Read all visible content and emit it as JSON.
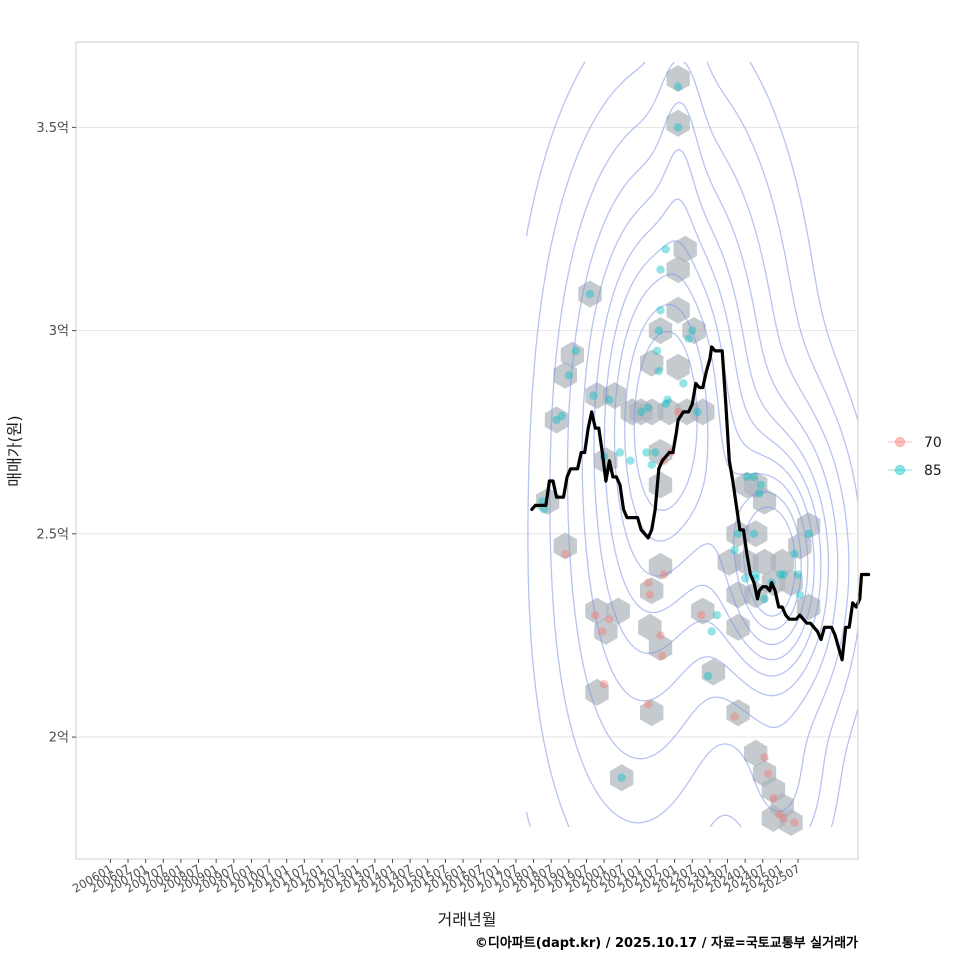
{
  "chart_data": {
    "type": "scatter",
    "title": "",
    "xlabel": "거래년월",
    "ylabel": "매매가(원)",
    "caption": "©디아파트(dapt.kr) / 2025.10.17 / 자료=국토교통부 실거래가",
    "x_ticks": [
      "200601",
      "200607",
      "200701",
      "200707",
      "200801",
      "200807",
      "200901",
      "200907",
      "201001",
      "201007",
      "201101",
      "201107",
      "201201",
      "201207",
      "201301",
      "201307",
      "201401",
      "201407",
      "201501",
      "201507",
      "201601",
      "201607",
      "201701",
      "201707",
      "201801",
      "201807",
      "201901",
      "201907",
      "202001",
      "202007",
      "202101",
      "202107",
      "202201",
      "202207",
      "202301",
      "202307",
      "202401",
      "202407",
      "202501",
      "202507"
    ],
    "y_ticks": [
      {
        "value": 2.0,
        "label": "2억"
      },
      {
        "value": 2.5,
        "label": "2.5억"
      },
      {
        "value": 3.0,
        "label": "3억"
      },
      {
        "value": 3.5,
        "label": "3.5억"
      }
    ],
    "ylim": [
      1.7,
      3.71
    ],
    "xlim": [
      -1.95,
      42.4
    ],
    "grid": true,
    "legend_position": "right",
    "colors": {
      "s70": "#F8766D",
      "s85": "#00BFC4",
      "trend": "#000000",
      "hex": "#aeb5bc",
      "contour": "#7b93e6",
      "grid": "#e4e4e4",
      "panel_border": "#cfcfcf"
    },
    "series": [
      {
        "name": "70",
        "color": "#F8766D",
        "points": [
          [
            25.8,
            2.45
          ],
          [
            27.5,
            2.3
          ],
          [
            27.9,
            2.26
          ],
          [
            28.3,
            2.29
          ],
          [
            28,
            2.13
          ],
          [
            30.5,
            2.38
          ],
          [
            30.6,
            2.35
          ],
          [
            30.5,
            2.08
          ],
          [
            31.2,
            2.25
          ],
          [
            31.3,
            2.2
          ],
          [
            31.4,
            2.4
          ],
          [
            31.4,
            2.68
          ],
          [
            31.8,
            2.7
          ],
          [
            32.2,
            2.8
          ],
          [
            33.5,
            2.3
          ],
          [
            35.4,
            2.05
          ],
          [
            37.1,
            1.95
          ],
          [
            37.3,
            1.91
          ],
          [
            37.6,
            1.85
          ],
          [
            37.9,
            1.81
          ],
          [
            38.2,
            1.8
          ],
          [
            38.8,
            1.79
          ]
        ]
      },
      {
        "name": "85",
        "color": "#00BFC4",
        "points": [
          [
            24.5,
            2.58
          ],
          [
            24.6,
            2.56
          ],
          [
            25.3,
            2.78
          ],
          [
            25.6,
            2.79
          ],
          [
            26,
            2.89
          ],
          [
            26.4,
            2.95
          ],
          [
            27.2,
            3.09
          ],
          [
            27.4,
            2.84
          ],
          [
            28,
            2.69
          ],
          [
            28.3,
            2.83
          ],
          [
            28.9,
            2.7
          ],
          [
            29,
            1.9
          ],
          [
            29.5,
            2.68
          ],
          [
            30.1,
            2.8
          ],
          [
            30.4,
            2.7
          ],
          [
            30.5,
            2.81
          ],
          [
            30.7,
            2.67
          ],
          [
            30.9,
            2.7
          ],
          [
            31,
            2.95
          ],
          [
            31.1,
            2.9
          ],
          [
            31.1,
            3.0
          ],
          [
            31.2,
            3.05
          ],
          [
            31.2,
            3.15
          ],
          [
            31.5,
            3.2
          ],
          [
            31.5,
            2.82
          ],
          [
            31.6,
            2.83
          ],
          [
            32.2,
            3.5
          ],
          [
            32.2,
            3.6
          ],
          [
            32.5,
            2.87
          ],
          [
            32.8,
            2.98
          ],
          [
            33,
            3.0
          ],
          [
            33.3,
            2.8
          ],
          [
            33.9,
            2.15
          ],
          [
            34.1,
            2.26
          ],
          [
            34.4,
            2.3
          ],
          [
            35.4,
            2.46
          ],
          [
            35.6,
            2.5
          ],
          [
            36,
            2.39
          ],
          [
            36.1,
            2.64
          ],
          [
            36.5,
            2.64
          ],
          [
            36.5,
            2.5
          ],
          [
            36.6,
            2.4
          ],
          [
            36.6,
            2.39
          ],
          [
            36.8,
            2.6
          ],
          [
            36.9,
            2.62
          ],
          [
            37.1,
            2.34
          ],
          [
            37.5,
            2.38
          ],
          [
            38,
            2.4
          ],
          [
            38.2,
            2.4
          ],
          [
            38.8,
            2.45
          ],
          [
            39,
            2.4
          ],
          [
            39.1,
            2.35
          ],
          [
            39.6,
            2.5
          ]
        ]
      }
    ],
    "hexbins": [
      [
        32.2,
        3.62
      ],
      [
        32.2,
        3.51
      ],
      [
        32.6,
        3.2
      ],
      [
        32.2,
        3.15
      ],
      [
        27.2,
        3.09
      ],
      [
        32.2,
        3.05
      ],
      [
        31.2,
        3.0
      ],
      [
        33.1,
        3.0
      ],
      [
        26.2,
        2.94
      ],
      [
        25.8,
        2.89
      ],
      [
        30.7,
        2.92
      ],
      [
        32.2,
        2.91
      ],
      [
        27.6,
        2.84
      ],
      [
        28.6,
        2.84
      ],
      [
        29.6,
        2.8
      ],
      [
        30.1,
        2.8
      ],
      [
        30.7,
        2.8
      ],
      [
        31.7,
        2.8
      ],
      [
        32.7,
        2.8
      ],
      [
        33.6,
        2.8
      ],
      [
        25.3,
        2.78
      ],
      [
        31.2,
        2.7
      ],
      [
        28.1,
        2.68
      ],
      [
        31.2,
        2.62
      ],
      [
        24.8,
        2.58
      ],
      [
        25.8,
        2.47
      ],
      [
        36.1,
        2.62
      ],
      [
        36.6,
        2.62
      ],
      [
        37.1,
        2.58
      ],
      [
        35.6,
        2.5
      ],
      [
        36.6,
        2.5
      ],
      [
        39.6,
        2.52
      ],
      [
        35.1,
        2.43
      ],
      [
        36.1,
        2.43
      ],
      [
        37.1,
        2.43
      ],
      [
        38.1,
        2.43
      ],
      [
        39.1,
        2.47
      ],
      [
        37.6,
        2.38
      ],
      [
        38.6,
        2.38
      ],
      [
        35.6,
        2.35
      ],
      [
        36.6,
        2.35
      ],
      [
        39.6,
        2.32
      ],
      [
        27.6,
        2.31
      ],
      [
        28.1,
        2.26
      ],
      [
        28.8,
        2.31
      ],
      [
        30.6,
        2.27
      ],
      [
        31.2,
        2.22
      ],
      [
        31.2,
        2.42
      ],
      [
        30.7,
        2.36
      ],
      [
        33.6,
        2.31
      ],
      [
        35.6,
        2.27
      ],
      [
        34.2,
        2.16
      ],
      [
        27.6,
        2.11
      ],
      [
        30.7,
        2.06
      ],
      [
        35.6,
        2.06
      ],
      [
        36.6,
        1.96
      ],
      [
        37.1,
        1.91
      ],
      [
        37.6,
        1.87
      ],
      [
        38.1,
        1.83
      ],
      [
        37.6,
        1.8
      ],
      [
        38.6,
        1.79
      ],
      [
        29,
        1.9
      ]
    ],
    "trend_line": [
      [
        23.9,
        2.56
      ],
      [
        24.1,
        2.57
      ],
      [
        24.5,
        2.57
      ],
      [
        24.7,
        2.57
      ],
      [
        24.9,
        2.63
      ],
      [
        25.1,
        2.63
      ],
      [
        25.3,
        2.59
      ],
      [
        25.7,
        2.59
      ],
      [
        25.9,
        2.64
      ],
      [
        26.1,
        2.66
      ],
      [
        26.5,
        2.66
      ],
      [
        26.7,
        2.7
      ],
      [
        26.9,
        2.7
      ],
      [
        27.1,
        2.76
      ],
      [
        27.3,
        2.8
      ],
      [
        27.5,
        2.76
      ],
      [
        27.7,
        2.76
      ],
      [
        27.9,
        2.7
      ],
      [
        28.1,
        2.63
      ],
      [
        28.3,
        2.68
      ],
      [
        28.5,
        2.64
      ],
      [
        28.7,
        2.64
      ],
      [
        28.9,
        2.62
      ],
      [
        29.1,
        2.56
      ],
      [
        29.3,
        2.54
      ],
      [
        29.9,
        2.54
      ],
      [
        30.1,
        2.51
      ],
      [
        30.3,
        2.5
      ],
      [
        30.5,
        2.49
      ],
      [
        30.7,
        2.51
      ],
      [
        30.9,
        2.56
      ],
      [
        31.1,
        2.66
      ],
      [
        31.3,
        2.68
      ],
      [
        31.7,
        2.7
      ],
      [
        31.9,
        2.7
      ],
      [
        32.1,
        2.75
      ],
      [
        32.2,
        2.78
      ],
      [
        32.5,
        2.8
      ],
      [
        32.8,
        2.8
      ],
      [
        33,
        2.82
      ],
      [
        33.2,
        2.87
      ],
      [
        33.4,
        2.86
      ],
      [
        33.6,
        2.86
      ],
      [
        33.8,
        2.9
      ],
      [
        34,
        2.93
      ],
      [
        34.1,
        2.96
      ],
      [
        34.3,
        2.95
      ],
      [
        34.5,
        2.95
      ],
      [
        34.7,
        2.95
      ],
      [
        34.9,
        2.82
      ],
      [
        35.1,
        2.68
      ],
      [
        35.3,
        2.63
      ],
      [
        35.5,
        2.57
      ],
      [
        35.7,
        2.51
      ],
      [
        35.9,
        2.51
      ],
      [
        36.1,
        2.45
      ],
      [
        36.3,
        2.4
      ],
      [
        36.5,
        2.38
      ],
      [
        36.7,
        2.34
      ],
      [
        36.8,
        2.36
      ],
      [
        37,
        2.37
      ],
      [
        37.2,
        2.37
      ],
      [
        37.4,
        2.36
      ],
      [
        37.5,
        2.38
      ],
      [
        37.7,
        2.36
      ],
      [
        37.9,
        2.32
      ],
      [
        38.1,
        2.32
      ],
      [
        38.3,
        2.3
      ],
      [
        38.5,
        2.29
      ],
      [
        38.7,
        2.29
      ],
      [
        38.9,
        2.29
      ],
      [
        39.1,
        2.3
      ],
      [
        39.3,
        2.29
      ],
      [
        39.5,
        2.28
      ],
      [
        39.7,
        2.28
      ],
      [
        39.9,
        2.27
      ],
      [
        40.1,
        2.26
      ],
      [
        40.3,
        2.24
      ],
      [
        40.5,
        2.27
      ],
      [
        40.7,
        2.27
      ],
      [
        40.9,
        2.27
      ],
      [
        41.1,
        2.25
      ],
      [
        41.3,
        2.22
      ],
      [
        41.5,
        2.19
      ],
      [
        41.7,
        2.27
      ],
      [
        41.9,
        2.27
      ],
      [
        42.1,
        2.33
      ],
      [
        42.3,
        2.32
      ],
      [
        42.5,
        2.34
      ],
      [
        42.6,
        2.4
      ],
      [
        42.8,
        2.4
      ],
      [
        43,
        2.4
      ]
    ],
    "density_peaks": [
      {
        "cx": 31.6,
        "cy": 2.83,
        "sx": 3.0,
        "sy": 0.34,
        "w": 1.0
      },
      {
        "cx": 37.7,
        "cy": 2.42,
        "sx": 2.0,
        "sy": 0.2,
        "w": 1.05
      },
      {
        "cx": 29.8,
        "cy": 2.28,
        "sx": 3.0,
        "sy": 0.35,
        "w": 0.3
      },
      {
        "cx": 32.3,
        "cy": 3.45,
        "sx": 0.8,
        "sy": 0.18,
        "w": 0.15
      },
      {
        "cx": 38.0,
        "cy": 1.88,
        "sx": 1.5,
        "sy": 0.12,
        "w": 0.12
      }
    ],
    "density_levels": [
      0.015,
      0.05,
      0.12,
      0.22,
      0.34,
      0.46,
      0.58,
      0.7,
      0.82,
      0.92
    ],
    "density_domain": {
      "x": [
        23.6,
        42.6
      ],
      "y": [
        1.78,
        3.66
      ]
    }
  }
}
